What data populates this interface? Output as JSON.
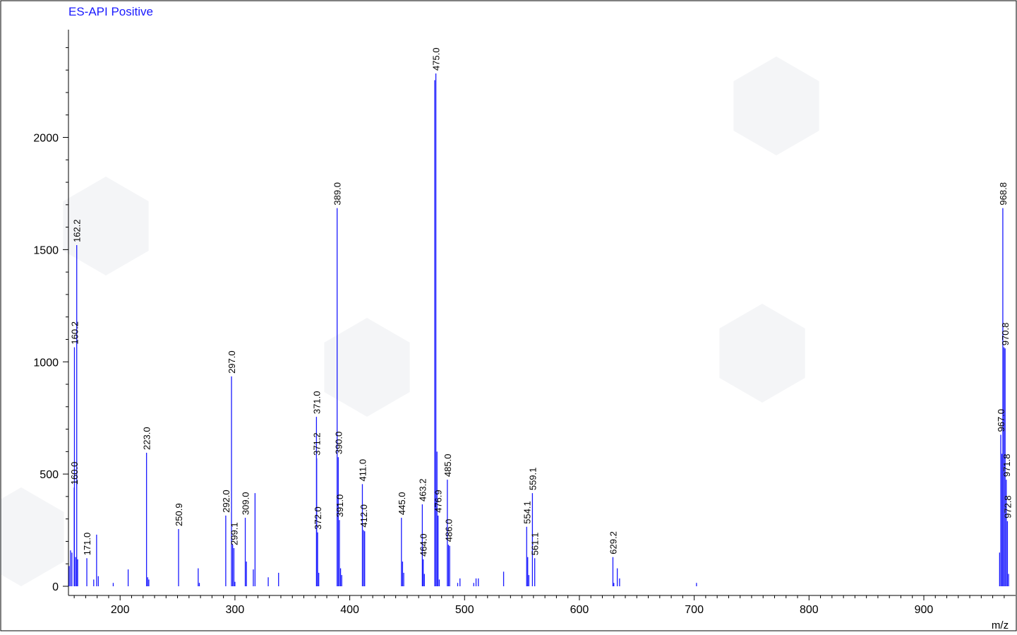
{
  "chart_data": {
    "type": "bar",
    "title": "ES-API Positive",
    "xlabel": "m/z",
    "ylabel": "",
    "xlim": [
      155,
      975
    ],
    "ylim": [
      0,
      2480
    ],
    "x_ticks": [
      200,
      300,
      400,
      500,
      600,
      700,
      800,
      900
    ],
    "y_ticks": [
      0,
      500,
      1000,
      1500,
      2000
    ],
    "colors": {
      "peaks": "#1a1aff",
      "axes": "#000000",
      "labels": "#000000",
      "title": "#1a1aff"
    },
    "peaks": [
      {
        "mz": 155.6,
        "intensity": 90
      },
      {
        "mz": 156.8,
        "intensity": 160
      },
      {
        "mz": 158.0,
        "intensity": 150
      },
      {
        "mz": 160.0,
        "intensity": 440,
        "label": "160.0"
      },
      {
        "mz": 160.2,
        "intensity": 1065,
        "label": "160.2"
      },
      {
        "mz": 161.2,
        "intensity": 130
      },
      {
        "mz": 162.2,
        "intensity": 1520,
        "label": "162.2"
      },
      {
        "mz": 163.0,
        "intensity": 120
      },
      {
        "mz": 171.0,
        "intensity": 125,
        "label": "171.0"
      },
      {
        "mz": 177.0,
        "intensity": 30
      },
      {
        "mz": 179.5,
        "intensity": 230
      },
      {
        "mz": 181.0,
        "intensity": 45
      },
      {
        "mz": 194.0,
        "intensity": 15
      },
      {
        "mz": 207.0,
        "intensity": 75
      },
      {
        "mz": 223.0,
        "intensity": 595,
        "label": "223.0"
      },
      {
        "mz": 224.0,
        "intensity": 40
      },
      {
        "mz": 225.0,
        "intensity": 30
      },
      {
        "mz": 250.9,
        "intensity": 255,
        "label": "250.9"
      },
      {
        "mz": 268.0,
        "intensity": 80
      },
      {
        "mz": 269.0,
        "intensity": 15
      },
      {
        "mz": 292.0,
        "intensity": 315,
        "label": "292.0"
      },
      {
        "mz": 297.0,
        "intensity": 935,
        "label": "297.0"
      },
      {
        "mz": 298.0,
        "intensity": 185
      },
      {
        "mz": 299.1,
        "intensity": 170,
        "label": "299.1"
      },
      {
        "mz": 300.0,
        "intensity": 20
      },
      {
        "mz": 309.0,
        "intensity": 305,
        "label": "309.0"
      },
      {
        "mz": 310.0,
        "intensity": 110
      },
      {
        "mz": 316.0,
        "intensity": 75
      },
      {
        "mz": 317.5,
        "intensity": 415
      },
      {
        "mz": 329.0,
        "intensity": 40
      },
      {
        "mz": 338.0,
        "intensity": 60
      },
      {
        "mz": 371.0,
        "intensity": 755,
        "label": "371.0"
      },
      {
        "mz": 371.2,
        "intensity": 570,
        "label": "371.2"
      },
      {
        "mz": 372.0,
        "intensity": 240,
        "label": "372.0"
      },
      {
        "mz": 373.0,
        "intensity": 60
      },
      {
        "mz": 389.0,
        "intensity": 1685,
        "label": "389.0"
      },
      {
        "mz": 390.0,
        "intensity": 575,
        "label": "390.0"
      },
      {
        "mz": 391.0,
        "intensity": 295,
        "label": "391.0"
      },
      {
        "mz": 392.0,
        "intensity": 80
      },
      {
        "mz": 393.0,
        "intensity": 50
      },
      {
        "mz": 411.0,
        "intensity": 455,
        "label": "411.0"
      },
      {
        "mz": 412.0,
        "intensity": 250,
        "label": "412.0"
      },
      {
        "mz": 413.0,
        "intensity": 245
      },
      {
        "mz": 445.0,
        "intensity": 305,
        "label": "445.0"
      },
      {
        "mz": 446.0,
        "intensity": 110
      },
      {
        "mz": 447.0,
        "intensity": 60
      },
      {
        "mz": 463.2,
        "intensity": 365,
        "label": "463.2"
      },
      {
        "mz": 464.0,
        "intensity": 120,
        "label": "464.0"
      },
      {
        "mz": 465.0,
        "intensity": 55
      },
      {
        "mz": 474.0,
        "intensity": 2255
      },
      {
        "mz": 475.0,
        "intensity": 2285,
        "label": "475.0"
      },
      {
        "mz": 476.0,
        "intensity": 600
      },
      {
        "mz": 476.9,
        "intensity": 315,
        "label": "476.9"
      },
      {
        "mz": 478.0,
        "intensity": 30
      },
      {
        "mz": 485.0,
        "intensity": 475,
        "label": "485.0"
      },
      {
        "mz": 486.0,
        "intensity": 185,
        "label": "486.0"
      },
      {
        "mz": 487.0,
        "intensity": 180
      },
      {
        "mz": 494.0,
        "intensity": 15
      },
      {
        "mz": 496.0,
        "intensity": 35
      },
      {
        "mz": 508.0,
        "intensity": 15
      },
      {
        "mz": 510.0,
        "intensity": 35
      },
      {
        "mz": 512.0,
        "intensity": 35
      },
      {
        "mz": 534.0,
        "intensity": 65
      },
      {
        "mz": 554.1,
        "intensity": 265,
        "label": "554.1"
      },
      {
        "mz": 555.0,
        "intensity": 130
      },
      {
        "mz": 556.0,
        "intensity": 50
      },
      {
        "mz": 559.1,
        "intensity": 415,
        "label": "559.1"
      },
      {
        "mz": 561.1,
        "intensity": 125,
        "label": "561.1"
      },
      {
        "mz": 629.2,
        "intensity": 130,
        "label": "629.2"
      },
      {
        "mz": 630.0,
        "intensity": 15
      },
      {
        "mz": 633.0,
        "intensity": 80
      },
      {
        "mz": 635.0,
        "intensity": 35
      },
      {
        "mz": 702.0,
        "intensity": 15
      },
      {
        "mz": 966.0,
        "intensity": 150
      },
      {
        "mz": 967.0,
        "intensity": 675,
        "label": "967.0"
      },
      {
        "mz": 968.0,
        "intensity": 590
      },
      {
        "mz": 968.8,
        "intensity": 1685,
        "label": "968.8"
      },
      {
        "mz": 969.8,
        "intensity": 1065
      },
      {
        "mz": 970.8,
        "intensity": 1060,
        "label": "970.8"
      },
      {
        "mz": 971.8,
        "intensity": 475,
        "label": "971.8"
      },
      {
        "mz": 972.8,
        "intensity": 290,
        "label": "972.8"
      },
      {
        "mz": 973.8,
        "intensity": 55
      }
    ]
  }
}
